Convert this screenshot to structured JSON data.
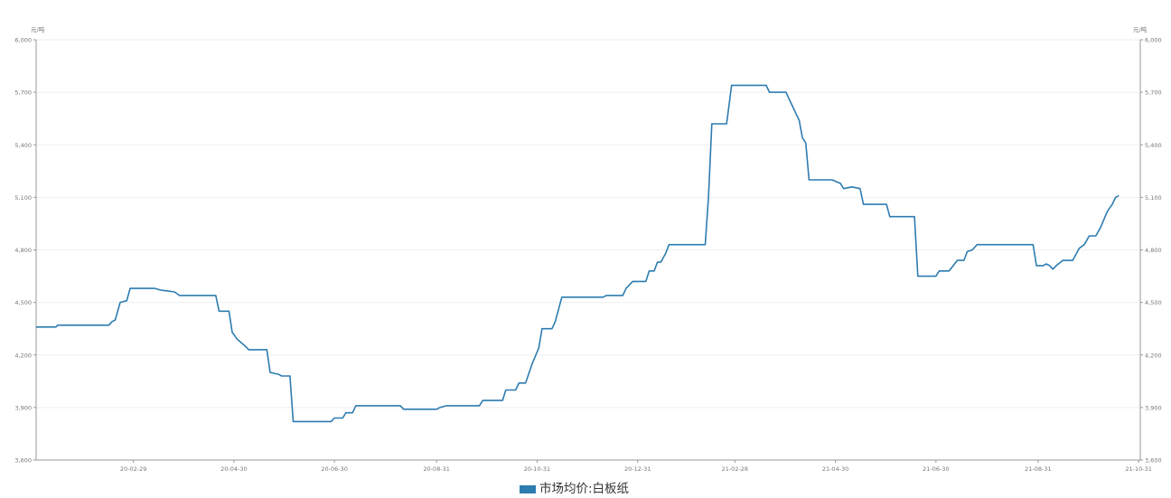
{
  "chart_data": {
    "type": "line",
    "y_unit_left": "元/吨",
    "y_unit_right": "元/吨",
    "ylim": [
      3600,
      6000
    ],
    "y_ticks": [
      "3,600",
      "3,900",
      "4,200",
      "4,500",
      "4,800",
      "5,100",
      "5,400",
      "5,700",
      "6,000"
    ],
    "y_tick_values": [
      3600,
      3900,
      4200,
      4500,
      4800,
      5100,
      5400,
      5700,
      6000
    ],
    "x_ticks": [
      "20-02-29",
      "20-04-30",
      "20-06-30",
      "20-08-31",
      "20-10-31",
      "20-12-31",
      "21-02-28",
      "21-04-30",
      "21-06-30",
      "21-08-31",
      "21-10-31"
    ],
    "x_tick_values": [
      "2020-02-29",
      "2020-04-30",
      "2020-06-30",
      "2020-08-31",
      "2020-10-31",
      "2020-12-31",
      "2021-02-28",
      "2021-04-30",
      "2021-06-30",
      "2021-08-31",
      "2021-10-31"
    ],
    "xlim": [
      "2020-01-01",
      "2021-11-01"
    ],
    "grid": true,
    "legend_position": "bottom-center",
    "series": [
      {
        "name": "市场均价:白板纸",
        "color": "#2d7cb0",
        "points": [
          [
            "2020-01-01",
            4360
          ],
          [
            "2020-01-13",
            4360
          ],
          [
            "2020-01-14",
            4370
          ],
          [
            "2020-02-14",
            4370
          ],
          [
            "2020-02-16",
            4390
          ],
          [
            "2020-02-18",
            4400
          ],
          [
            "2020-02-21",
            4500
          ],
          [
            "2020-02-25",
            4510
          ],
          [
            "2020-02-27",
            4580
          ],
          [
            "2020-03-13",
            4580
          ],
          [
            "2020-03-17",
            4570
          ],
          [
            "2020-03-25",
            4560
          ],
          [
            "2020-03-28",
            4540
          ],
          [
            "2020-04-19",
            4540
          ],
          [
            "2020-04-21",
            4450
          ],
          [
            "2020-04-27",
            4450
          ],
          [
            "2020-04-29",
            4330
          ],
          [
            "2020-05-02",
            4290
          ],
          [
            "2020-05-07",
            4250
          ],
          [
            "2020-05-09",
            4230
          ],
          [
            "2020-05-20",
            4230
          ],
          [
            "2020-05-22",
            4100
          ],
          [
            "2020-05-27",
            4090
          ],
          [
            "2020-05-29",
            4080
          ],
          [
            "2020-06-03",
            4080
          ],
          [
            "2020-06-05",
            3820
          ],
          [
            "2020-06-28",
            3820
          ],
          [
            "2020-06-30",
            3840
          ],
          [
            "2020-07-05",
            3840
          ],
          [
            "2020-07-07",
            3870
          ],
          [
            "2020-07-11",
            3870
          ],
          [
            "2020-07-13",
            3910
          ],
          [
            "2020-08-09",
            3910
          ],
          [
            "2020-08-11",
            3890
          ],
          [
            "2020-08-31",
            3890
          ],
          [
            "2020-09-02",
            3900
          ],
          [
            "2020-09-06",
            3910
          ],
          [
            "2020-09-26",
            3910
          ],
          [
            "2020-09-28",
            3940
          ],
          [
            "2020-10-10",
            3940
          ],
          [
            "2020-10-12",
            4000
          ],
          [
            "2020-10-18",
            4000
          ],
          [
            "2020-10-20",
            4040
          ],
          [
            "2020-10-24",
            4040
          ],
          [
            "2020-10-28",
            4150
          ],
          [
            "2020-11-01",
            4240
          ],
          [
            "2020-11-03",
            4350
          ],
          [
            "2020-11-09",
            4350
          ],
          [
            "2020-11-11",
            4390
          ],
          [
            "2020-11-15",
            4530
          ],
          [
            "2020-12-10",
            4530
          ],
          [
            "2020-12-12",
            4540
          ],
          [
            "2020-12-22",
            4540
          ],
          [
            "2020-12-24",
            4580
          ],
          [
            "2020-12-28",
            4620
          ],
          [
            "2021-01-05",
            4620
          ],
          [
            "2021-01-07",
            4680
          ],
          [
            "2021-01-10",
            4680
          ],
          [
            "2021-01-12",
            4730
          ],
          [
            "2021-01-14",
            4730
          ],
          [
            "2021-01-17",
            4780
          ],
          [
            "2021-01-19",
            4830
          ],
          [
            "2021-02-10",
            4830
          ],
          [
            "2021-02-12",
            5100
          ],
          [
            "2021-02-14",
            5520
          ],
          [
            "2021-02-23",
            5520
          ],
          [
            "2021-02-26",
            5740
          ],
          [
            "2021-03-19",
            5740
          ],
          [
            "2021-03-21",
            5700
          ],
          [
            "2021-03-31",
            5700
          ],
          [
            "2021-04-02",
            5660
          ],
          [
            "2021-04-04",
            5620
          ],
          [
            "2021-04-06",
            5580
          ],
          [
            "2021-04-08",
            5540
          ],
          [
            "2021-04-10",
            5440
          ],
          [
            "2021-04-12",
            5410
          ],
          [
            "2021-04-14",
            5200
          ],
          [
            "2021-04-28",
            5200
          ],
          [
            "2021-05-03",
            5180
          ],
          [
            "2021-05-05",
            5150
          ],
          [
            "2021-05-10",
            5160
          ],
          [
            "2021-05-15",
            5150
          ],
          [
            "2021-05-17",
            5060
          ],
          [
            "2021-05-31",
            5060
          ],
          [
            "2021-06-02",
            4990
          ],
          [
            "2021-06-17",
            4990
          ],
          [
            "2021-06-19",
            4650
          ],
          [
            "2021-06-30",
            4650
          ],
          [
            "2021-07-02",
            4680
          ],
          [
            "2021-07-08",
            4680
          ],
          [
            "2021-07-13",
            4740
          ],
          [
            "2021-07-17",
            4740
          ],
          [
            "2021-07-19",
            4790
          ],
          [
            "2021-07-22",
            4800
          ],
          [
            "2021-07-25",
            4830
          ],
          [
            "2021-08-28",
            4830
          ],
          [
            "2021-08-30",
            4710
          ],
          [
            "2021-09-03",
            4710
          ],
          [
            "2021-09-05",
            4720
          ],
          [
            "2021-09-07",
            4710
          ],
          [
            "2021-09-09",
            4690
          ],
          [
            "2021-09-11",
            4710
          ],
          [
            "2021-09-15",
            4740
          ],
          [
            "2021-09-21",
            4740
          ],
          [
            "2021-09-25",
            4810
          ],
          [
            "2021-09-28",
            4830
          ],
          [
            "2021-10-01",
            4880
          ],
          [
            "2021-10-05",
            4880
          ],
          [
            "2021-10-08",
            4930
          ],
          [
            "2021-10-12",
            5020
          ],
          [
            "2021-10-15",
            5060
          ],
          [
            "2021-10-17",
            5100
          ],
          [
            "2021-10-19",
            5110
          ]
        ]
      }
    ]
  }
}
